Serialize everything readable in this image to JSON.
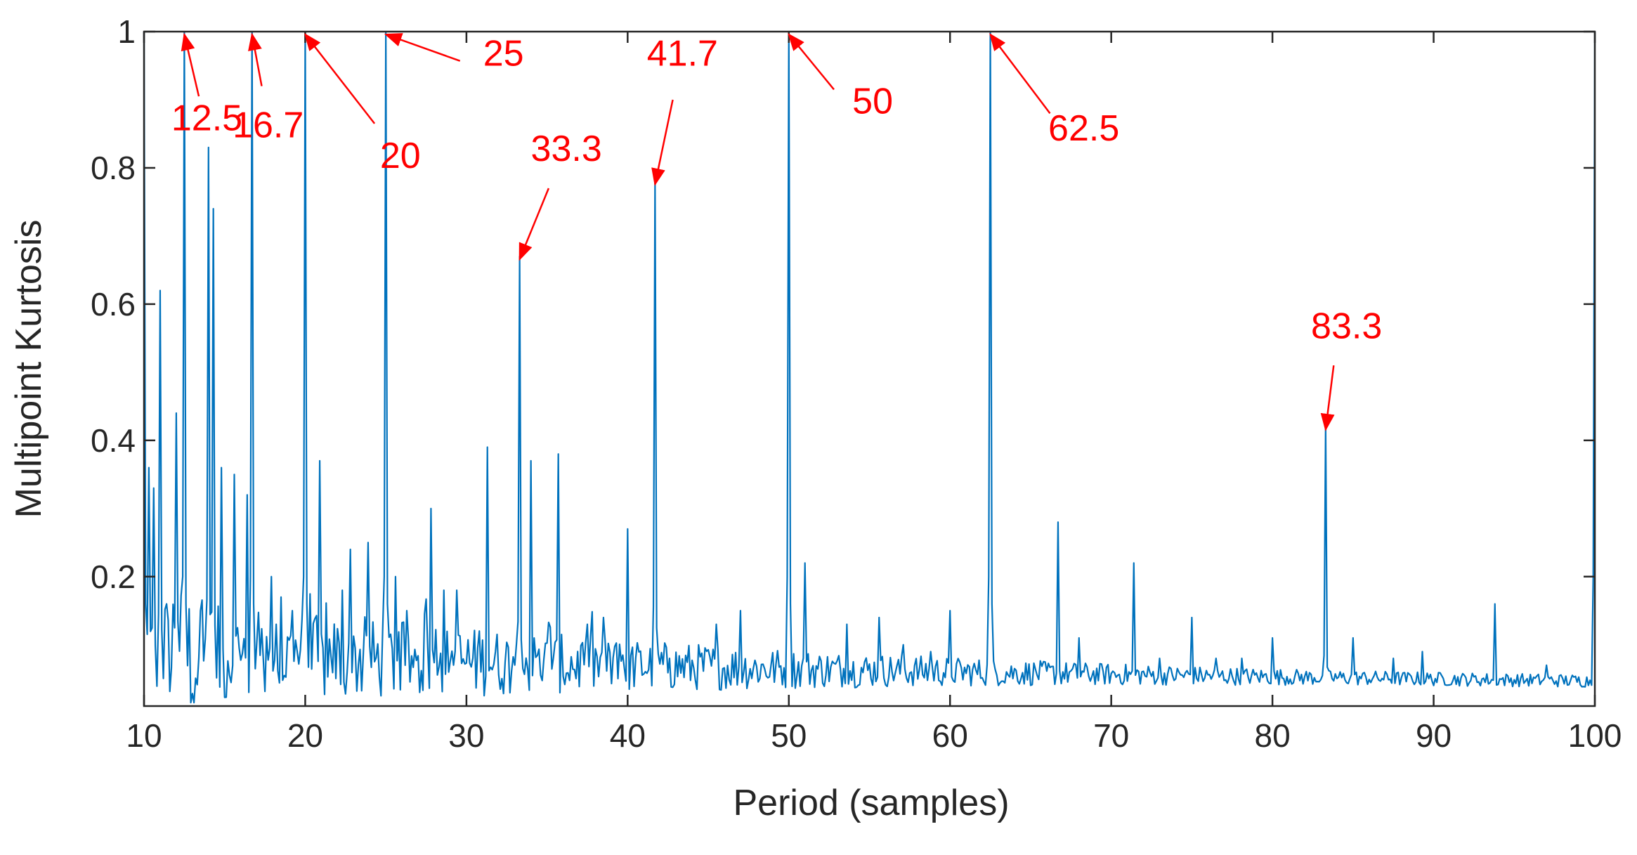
{
  "chart_data": {
    "type": "line",
    "title": "",
    "xlabel": "Period (samples)",
    "ylabel": "Multipoint Kurtosis",
    "xlim": [
      10,
      100
    ],
    "ylim": [
      0.01,
      1
    ],
    "xticks": [
      10,
      20,
      30,
      40,
      50,
      60,
      70,
      80,
      90,
      100
    ],
    "yticks": [
      0.2,
      0.4,
      0.6,
      0.8,
      1
    ],
    "ytick_labels": [
      "0.2",
      "0.4",
      "0.6",
      "0.8",
      "1"
    ],
    "grid": false,
    "colors": {
      "series": "#0072BD",
      "annotation": "#FF0000",
      "axis": "#262626"
    },
    "series": [
      {
        "name": "Multipoint Kurtosis",
        "peaks": [
          [
            10.0,
            1.0
          ],
          [
            10.3,
            0.36
          ],
          [
            10.6,
            0.33
          ],
          [
            11.0,
            0.62
          ],
          [
            11.4,
            0.16
          ],
          [
            12.0,
            0.44
          ],
          [
            12.5,
            1.0
          ],
          [
            13.5,
            0.15
          ],
          [
            14.0,
            0.83
          ],
          [
            14.35,
            0.74
          ],
          [
            14.8,
            0.36
          ],
          [
            15.6,
            0.35
          ],
          [
            16.4,
            0.32
          ],
          [
            16.7,
            1.0
          ],
          [
            17.9,
            0.2
          ],
          [
            18.5,
            0.17
          ],
          [
            19.2,
            0.15
          ],
          [
            20.0,
            1.0
          ],
          [
            20.9,
            0.37
          ],
          [
            22.3,
            0.18
          ],
          [
            22.8,
            0.24
          ],
          [
            23.9,
            0.25
          ],
          [
            25.0,
            1.0
          ],
          [
            25.6,
            0.2
          ],
          [
            26.3,
            0.15
          ],
          [
            27.8,
            0.3
          ],
          [
            28.6,
            0.18
          ],
          [
            29.4,
            0.18
          ],
          [
            31.3,
            0.39
          ],
          [
            33.3,
            0.67
          ],
          [
            34.0,
            0.37
          ],
          [
            35.7,
            0.38
          ],
          [
            37.5,
            0.13
          ],
          [
            38.5,
            0.14
          ],
          [
            40.0,
            0.27
          ],
          [
            41.7,
            0.78
          ],
          [
            42.6,
            0.08
          ],
          [
            45.5,
            0.13
          ],
          [
            47.0,
            0.15
          ],
          [
            50.0,
            1.0
          ],
          [
            51.0,
            0.22
          ],
          [
            53.6,
            0.13
          ],
          [
            55.6,
            0.14
          ],
          [
            57.1,
            0.1
          ],
          [
            58.8,
            0.09
          ],
          [
            60.0,
            0.15
          ],
          [
            62.5,
            1.0
          ],
          [
            66.7,
            0.28
          ],
          [
            68.0,
            0.11
          ],
          [
            71.4,
            0.22
          ],
          [
            73.0,
            0.08
          ],
          [
            75.0,
            0.14
          ],
          [
            76.5,
            0.08
          ],
          [
            78.1,
            0.08
          ],
          [
            80.0,
            0.11
          ],
          [
            83.3,
            0.42
          ],
          [
            85.0,
            0.11
          ],
          [
            87.5,
            0.08
          ],
          [
            89.3,
            0.09
          ],
          [
            93.8,
            0.16
          ],
          [
            97.0,
            0.07
          ],
          [
            100.0,
            1.0
          ]
        ],
        "baseline_start": 0.07,
        "baseline_end": 0.045
      }
    ],
    "annotations": [
      {
        "text": "12.5",
        "x": 12.5,
        "y": 1.0,
        "label_x": 13.9,
        "label_y": 0.855,
        "tail_x": 13.4,
        "tail_y": 0.905
      },
      {
        "text": "16.7",
        "x": 16.7,
        "y": 1.0,
        "label_x": 17.7,
        "label_y": 0.845,
        "tail_x": 17.3,
        "tail_y": 0.92
      },
      {
        "text": "20",
        "x": 20.0,
        "y": 1.0,
        "label_x": 25.9,
        "label_y": 0.8,
        "tail_x": 24.3,
        "tail_y": 0.865
      },
      {
        "text": "25",
        "x": 25.0,
        "y": 1.0,
        "label_x": 32.3,
        "label_y": 0.95,
        "tail_x": 29.6,
        "tail_y": 0.957
      },
      {
        "text": "33.3",
        "x": 33.3,
        "y": 0.67,
        "label_x": 36.2,
        "label_y": 0.81,
        "tail_x": 35.1,
        "tail_y": 0.77
      },
      {
        "text": "41.7",
        "x": 41.7,
        "y": 0.78,
        "label_x": 43.4,
        "label_y": 0.95,
        "tail_x": 42.8,
        "tail_y": 0.9
      },
      {
        "text": "50",
        "x": 50.0,
        "y": 1.0,
        "label_x": 55.2,
        "label_y": 0.88,
        "tail_x": 52.8,
        "tail_y": 0.915
      },
      {
        "text": "62.5",
        "x": 62.5,
        "y": 1.0,
        "label_x": 68.3,
        "label_y": 0.84,
        "tail_x": 66.2,
        "tail_y": 0.88
      },
      {
        "text": "83.3",
        "x": 83.3,
        "y": 0.42,
        "label_x": 84.6,
        "label_y": 0.55,
        "tail_x": 83.8,
        "tail_y": 0.51
      }
    ]
  }
}
